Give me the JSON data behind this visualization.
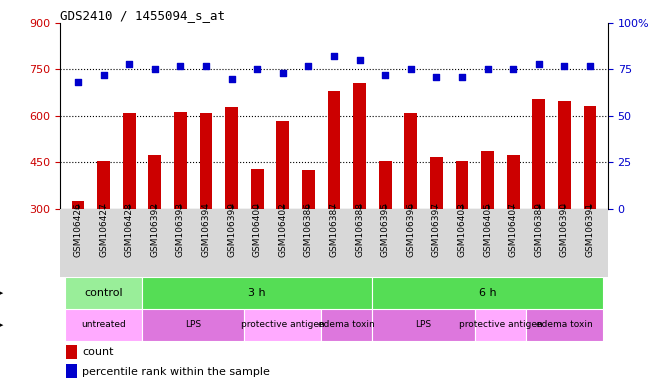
{
  "title": "GDS2410 / 1455094_s_at",
  "samples": [
    "GSM106426",
    "GSM106427",
    "GSM106428",
    "GSM106392",
    "GSM106393",
    "GSM106394",
    "GSM106399",
    "GSM106400",
    "GSM106402",
    "GSM106386",
    "GSM106387",
    "GSM106388",
    "GSM106395",
    "GSM106396",
    "GSM106397",
    "GSM106403",
    "GSM106405",
    "GSM106407",
    "GSM106389",
    "GSM106390",
    "GSM106391"
  ],
  "counts": [
    325,
    453,
    610,
    473,
    613,
    610,
    628,
    427,
    585,
    425,
    680,
    705,
    455,
    610,
    468,
    453,
    488,
    473,
    653,
    648,
    632
  ],
  "percentile_ranks": [
    68,
    72,
    78,
    75,
    77,
    77,
    70,
    75,
    73,
    77,
    82,
    80,
    72,
    75,
    71,
    71,
    75,
    75,
    78,
    77,
    77
  ],
  "ylim_left": [
    300,
    900
  ],
  "ylim_right": [
    0,
    100
  ],
  "yticks_left": [
    300,
    450,
    600,
    750,
    900
  ],
  "yticks_right": [
    0,
    25,
    50,
    75,
    100
  ],
  "bar_color": "#cc0000",
  "dot_color": "#0000cc",
  "bg_plot": "#ffffff",
  "bg_label": "#d8d8d8",
  "time_groups": [
    {
      "label": "control",
      "start": 0,
      "end": 3,
      "color": "#99ee99"
    },
    {
      "label": "3 h",
      "start": 3,
      "end": 12,
      "color": "#55dd55"
    },
    {
      "label": "6 h",
      "start": 12,
      "end": 21,
      "color": "#55dd55"
    }
  ],
  "agent_groups": [
    {
      "label": "untreated",
      "start": 0,
      "end": 3,
      "color": "#ffaaff"
    },
    {
      "label": "LPS",
      "start": 3,
      "end": 7,
      "color": "#dd77dd"
    },
    {
      "label": "protective antigen",
      "start": 7,
      "end": 10,
      "color": "#ffaaff"
    },
    {
      "label": "edema toxin",
      "start": 10,
      "end": 12,
      "color": "#dd77dd"
    },
    {
      "label": "LPS",
      "start": 12,
      "end": 16,
      "color": "#dd77dd"
    },
    {
      "label": "protective antigen",
      "start": 16,
      "end": 18,
      "color": "#ffaaff"
    },
    {
      "label": "edema toxin",
      "start": 18,
      "end": 21,
      "color": "#dd77dd"
    }
  ]
}
